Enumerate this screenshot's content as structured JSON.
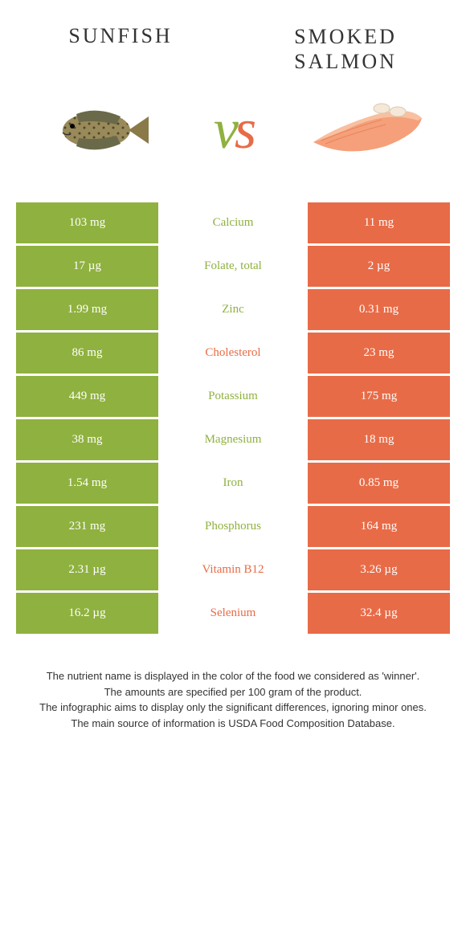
{
  "colors": {
    "left": "#8fb13f",
    "right": "#e86b47",
    "bg": "#ffffff"
  },
  "header": {
    "left_title": "Sunfish",
    "right_title_line1": "Smoked",
    "right_title_line2": "salmon",
    "vs": "vs"
  },
  "rows": [
    {
      "nutrient": "Calcium",
      "left": "103 mg",
      "right": "11 mg",
      "winner": "left"
    },
    {
      "nutrient": "Folate, total",
      "left": "17 µg",
      "right": "2 µg",
      "winner": "left"
    },
    {
      "nutrient": "Zinc",
      "left": "1.99 mg",
      "right": "0.31 mg",
      "winner": "left"
    },
    {
      "nutrient": "Cholesterol",
      "left": "86 mg",
      "right": "23 mg",
      "winner": "right"
    },
    {
      "nutrient": "Potassium",
      "left": "449 mg",
      "right": "175 mg",
      "winner": "left"
    },
    {
      "nutrient": "Magnesium",
      "left": "38 mg",
      "right": "18 mg",
      "winner": "left"
    },
    {
      "nutrient": "Iron",
      "left": "1.54 mg",
      "right": "0.85 mg",
      "winner": "left"
    },
    {
      "nutrient": "Phosphorus",
      "left": "231 mg",
      "right": "164 mg",
      "winner": "left"
    },
    {
      "nutrient": "Vitamin B12",
      "left": "2.31 µg",
      "right": "3.26 µg",
      "winner": "right"
    },
    {
      "nutrient": "Selenium",
      "left": "16.2 µg",
      "right": "32.4 µg",
      "winner": "right"
    }
  ],
  "footer": {
    "line1": "The nutrient name is displayed in the color of the food we considered as 'winner'.",
    "line2": "The amounts are specified per 100 gram of the product.",
    "line3": "The infographic aims to display only the significant differences, ignoring minor ones.",
    "line4": "The main source of information is USDA Food Composition Database."
  }
}
